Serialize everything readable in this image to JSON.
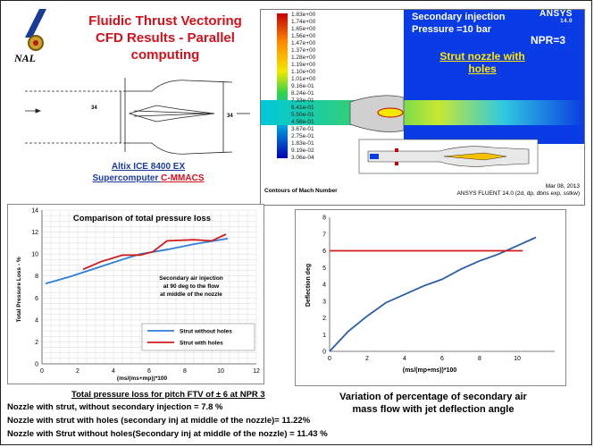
{
  "header": {
    "title_line1": "Fluidic Thrust Vectoring",
    "title_line2": "CFD Results - Parallel computing",
    "org": "NAL"
  },
  "sketch": {
    "dim_left": "34",
    "dim_right": "34"
  },
  "computer": {
    "line1": "Altix ICE 8400 EX",
    "line2_prefix": "Supercomputer ",
    "line2_highlight": "C-MMACS"
  },
  "cfd": {
    "colorbar_values": [
      "1.83e+00",
      "1.74e+00",
      "1.65e+00",
      "1.56e+00",
      "1.47e+00",
      "1.37e+00",
      "1.28e+00",
      "1.19e+00",
      "1.10e+00",
      "1.01e+00",
      "9.16e-01",
      "8.24e-01",
      "7.33e-01",
      "6.41e-01",
      "5.50e-01",
      "4.58e-01",
      "3.67e-01",
      "2.75e-01",
      "1.83e-01",
      "9.19e-02",
      "3.06e-04"
    ],
    "injection_line1": "Secondary injection",
    "injection_line2": "Pressure =10 bar",
    "npr": "NPR=3",
    "strut_line1": "Strut nozzle with",
    "strut_line2": "holes",
    "logo": "ANSYS",
    "logo_version": "14.0",
    "contour_caption": "Contours of Mach Number",
    "date": "Mar 08, 2013",
    "solver": "ANSYS FLUENT 14.0 (2d, dp, dbns exp, sstkw)"
  },
  "chart_data": [
    {
      "type": "line",
      "title": "Comparison of total pressure loss",
      "xlabel": "(ms/(ms+mp))*100",
      "ylabel": "Total Pressure Loss - %",
      "xlim": [
        0,
        12
      ],
      "ylim": [
        0,
        14
      ],
      "xticks": [
        0,
        2,
        4,
        6,
        8,
        10,
        12
      ],
      "yticks": [
        0,
        2,
        4,
        6,
        8,
        10,
        12,
        14
      ],
      "grid": true,
      "legend_position": "bottom-right",
      "annotation": [
        "Secondary air injection",
        "at 90 deg to the flow",
        "at middle of the nozzle"
      ],
      "series": [
        {
          "name": "Strut without holes",
          "color": "#2f7ed8",
          "x": [
            0.2,
            1.5,
            3,
            4.5,
            5.5,
            7,
            8.5,
            10.4
          ],
          "y": [
            7.3,
            7.9,
            8.7,
            9.5,
            10.0,
            10.4,
            10.9,
            11.4
          ]
        },
        {
          "name": "Strut with holes",
          "color": "#d01c1c",
          "x": [
            2.3,
            3.3,
            4.5,
            5.5,
            6.2,
            7,
            8.5,
            9.5,
            10.3
          ],
          "y": [
            8.6,
            9.3,
            9.9,
            9.9,
            10.2,
            11.2,
            11.3,
            11.2,
            11.8
          ]
        }
      ]
    },
    {
      "type": "line",
      "title": "",
      "xlabel": "(ms/(mp+ms))*100",
      "ylabel": "Deflection deg",
      "xlim": [
        0,
        12
      ],
      "ylim": [
        0,
        8
      ],
      "xticks": [
        0,
        2,
        4,
        6,
        8,
        10
      ],
      "yticks": [
        0,
        1,
        2,
        3,
        4,
        5,
        6,
        7,
        8
      ],
      "grid": false,
      "series": [
        {
          "name": "",
          "color": "#2a5ea8",
          "x": [
            0,
            1,
            2,
            3,
            4,
            5,
            6,
            7,
            8,
            9,
            10,
            11
          ],
          "y": [
            0,
            1.2,
            2.1,
            2.9,
            3.4,
            3.9,
            4.3,
            4.9,
            5.4,
            5.8,
            6.3,
            6.8
          ]
        },
        {
          "name": "",
          "color": "#d01c1c",
          "x": [
            0,
            10.3
          ],
          "y": [
            6,
            6
          ]
        }
      ]
    }
  ],
  "captions": {
    "left_title": "Total pressure loss for pitch FTV of ± 6 at NPR  3",
    "note1": "Nozzle with strut, without secondary injection = 7.8 %",
    "note2": "Nozzle with strut with holes (secondary inj at middle of the nozzle)= 11.22%",
    "note3": "Nozzle with Strut without holes(Secondary inj at middle of the nozzle) = 11.43 %",
    "right_title": "Variation of percentage of secondary air mass flow with jet deflection angle"
  }
}
